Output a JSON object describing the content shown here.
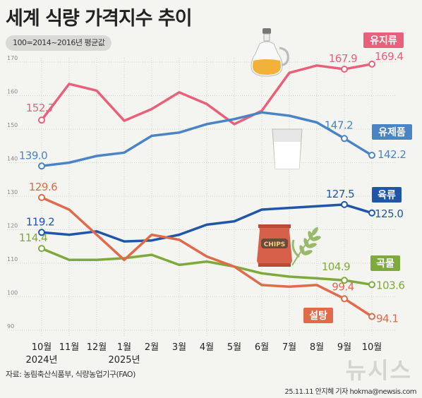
{
  "chart_data": {
    "type": "line",
    "title": "세계 식량 가격지수 추이",
    "subtitle": "100=2014~2016년 평균값",
    "x": [
      "10월",
      "11월",
      "12월",
      "1월",
      "2월",
      "3월",
      "4월",
      "5월",
      "6월",
      "7월",
      "8월",
      "9월",
      "10월"
    ],
    "year_labels": [
      {
        "index": 0,
        "label": "2024년"
      },
      {
        "index": 3,
        "label": "2025년"
      }
    ],
    "ylim": [
      90,
      170
    ],
    "yticks": [
      90,
      100,
      110,
      120,
      130,
      140,
      150,
      160,
      170
    ],
    "grid": true,
    "series": [
      {
        "name": "유지류",
        "color": "#e8607a",
        "values": [
          152.7,
          163.5,
          161.5,
          152.5,
          156.0,
          161.0,
          157.5,
          151.5,
          155.5,
          166.8,
          169.0,
          167.9,
          169.4
        ],
        "labels": [
          {
            "index": 0,
            "text": "152.7"
          },
          {
            "index": 11,
            "text": "167.9"
          },
          {
            "index": 12,
            "text": "169.4"
          }
        ]
      },
      {
        "name": "유제품",
        "color": "#4a84c4",
        "values": [
          139.0,
          140.0,
          142.0,
          143.0,
          148.0,
          149.0,
          151.5,
          153.0,
          155.0,
          154.0,
          152.0,
          147.2,
          142.2
        ],
        "labels": [
          {
            "index": 0,
            "text": "139.0"
          },
          {
            "index": 11,
            "text": "147.2"
          },
          {
            "index": 12,
            "text": "142.2"
          }
        ]
      },
      {
        "name": "육류",
        "color": "#1f56a8",
        "values": [
          119.2,
          118.5,
          119.5,
          116.5,
          116.8,
          118.5,
          121.5,
          122.5,
          126.0,
          126.5,
          127.0,
          127.5,
          125.0
        ],
        "labels": [
          {
            "index": 0,
            "text": "119.2"
          },
          {
            "index": 11,
            "text": "127.5"
          },
          {
            "index": 12,
            "text": "125.0"
          }
        ]
      },
      {
        "name": "곡물",
        "color": "#7daa3a",
        "values": [
          114.4,
          111.0,
          111.0,
          111.5,
          112.5,
          109.5,
          110.5,
          109.0,
          107.0,
          106.0,
          105.5,
          104.9,
          103.6
        ],
        "labels": [
          {
            "index": 0,
            "text": "114.4"
          },
          {
            "index": 11,
            "text": "104.9"
          },
          {
            "index": 12,
            "text": "103.6"
          }
        ]
      },
      {
        "name": "설탕",
        "color": "#e06a4a",
        "values": [
          129.6,
          126.0,
          118.5,
          111.0,
          118.5,
          117.0,
          112.0,
          109.0,
          103.5,
          103.0,
          103.5,
          99.4,
          94.1
        ],
        "labels": [
          {
            "index": 0,
            "text": "129.6"
          },
          {
            "index": 11,
            "text": "99.4"
          },
          {
            "index": 12,
            "text": "94.1"
          }
        ]
      }
    ]
  },
  "source": "자료: 농림축산식품부, 식량농업기구(FAO)",
  "credit": "25.11.11 안지혜 기자 hokma@newsis.com",
  "watermark": "뉴시스",
  "icons": [
    "oil-bottle-icon",
    "milk-glass-icon",
    "chips-bag-icon",
    "wheat-icon"
  ]
}
